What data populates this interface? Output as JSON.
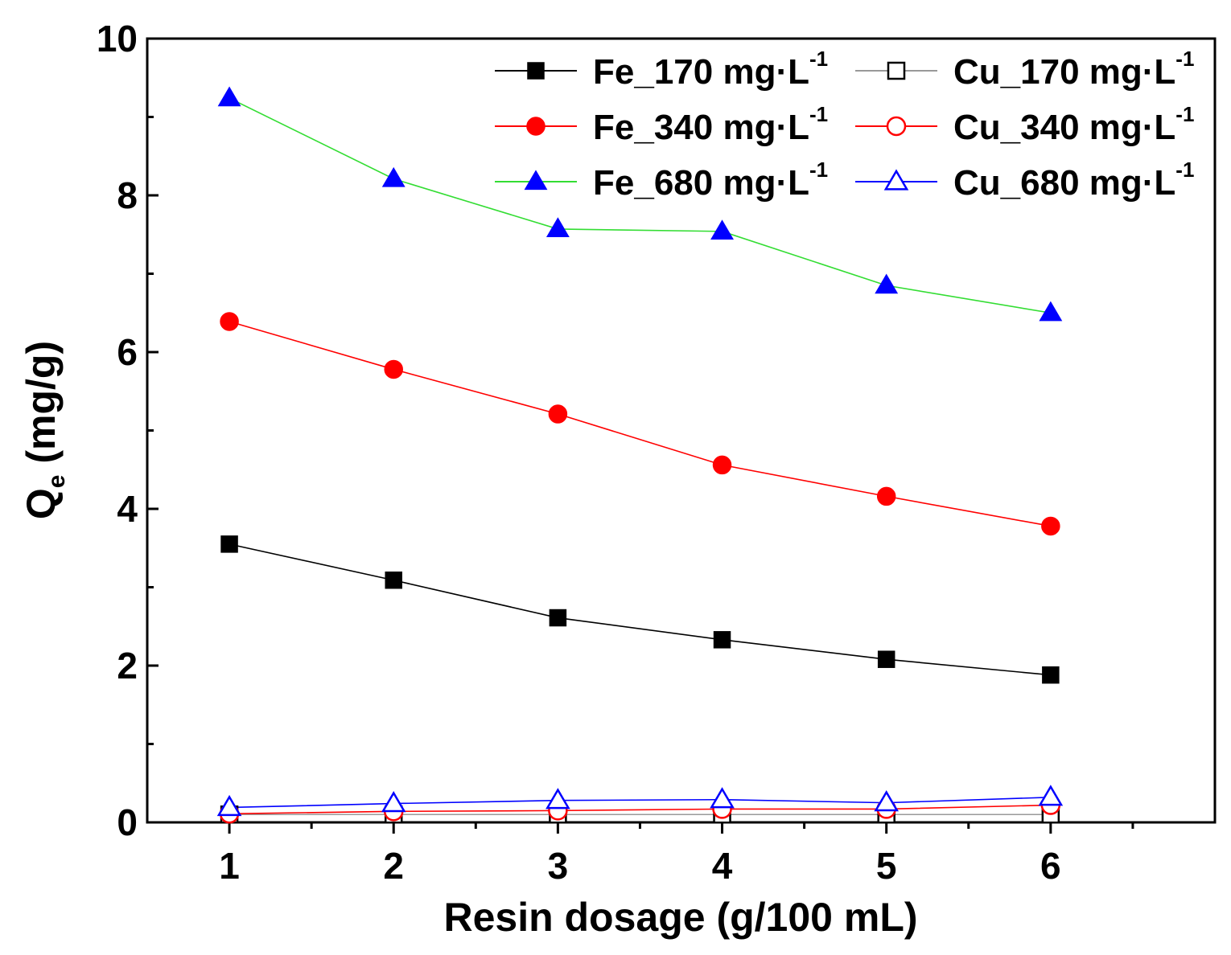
{
  "chart_data": {
    "type": "line",
    "title": "",
    "xlabel": "Resin dosage (g/100 mL)",
    "ylabel_main": "Q",
    "ylabel_sub": "e",
    "ylabel_unit": " (mg/g)",
    "xlim": [
      0.5,
      7.0
    ],
    "ylim": [
      0,
      10
    ],
    "x_ticks": [
      1,
      2,
      3,
      4,
      5,
      6
    ],
    "y_ticks": [
      0,
      2,
      4,
      6,
      8,
      10
    ],
    "grid": false,
    "legend_position": "top-right",
    "x": [
      1,
      2,
      3,
      4,
      5,
      6
    ],
    "series": [
      {
        "name": "Fe_170 mg·L",
        "sup": "-1",
        "marker": "square",
        "filled": true,
        "marker_color": "#000000",
        "line_color": "#000000",
        "values": [
          3.55,
          3.09,
          2.61,
          2.33,
          2.08,
          1.88
        ]
      },
      {
        "name": "Fe_340 mg·L",
        "sup": "-1",
        "marker": "circle",
        "filled": true,
        "marker_color": "#ff0000",
        "line_color": "#ff0000",
        "values": [
          6.39,
          5.78,
          5.21,
          4.56,
          4.16,
          3.78
        ]
      },
      {
        "name": "Fe_680 mg·L",
        "sup": "-1",
        "marker": "triangle",
        "filled": true,
        "marker_color": "#0000ff",
        "line_color": "#33dd33",
        "values": [
          9.24,
          8.21,
          7.57,
          7.54,
          6.85,
          6.5
        ]
      },
      {
        "name": "Cu_170 mg·L",
        "sup": "-1",
        "marker": "square",
        "filled": false,
        "marker_color": "#000000",
        "line_color": "#999999",
        "values": [
          0.1,
          0.1,
          0.1,
          0.1,
          0.1,
          0.1
        ]
      },
      {
        "name": "Cu_340 mg·L",
        "sup": "-1",
        "marker": "circle",
        "filled": false,
        "marker_color": "#ff0000",
        "line_color": "#ff0000",
        "values": [
          0.11,
          0.14,
          0.15,
          0.17,
          0.17,
          0.22
        ]
      },
      {
        "name": "Cu_680 mg·L",
        "sup": "-1",
        "marker": "triangle",
        "filled": false,
        "marker_color": "#0000ff",
        "line_color": "#0000ff",
        "values": [
          0.19,
          0.24,
          0.28,
          0.29,
          0.25,
          0.32
        ]
      }
    ]
  }
}
